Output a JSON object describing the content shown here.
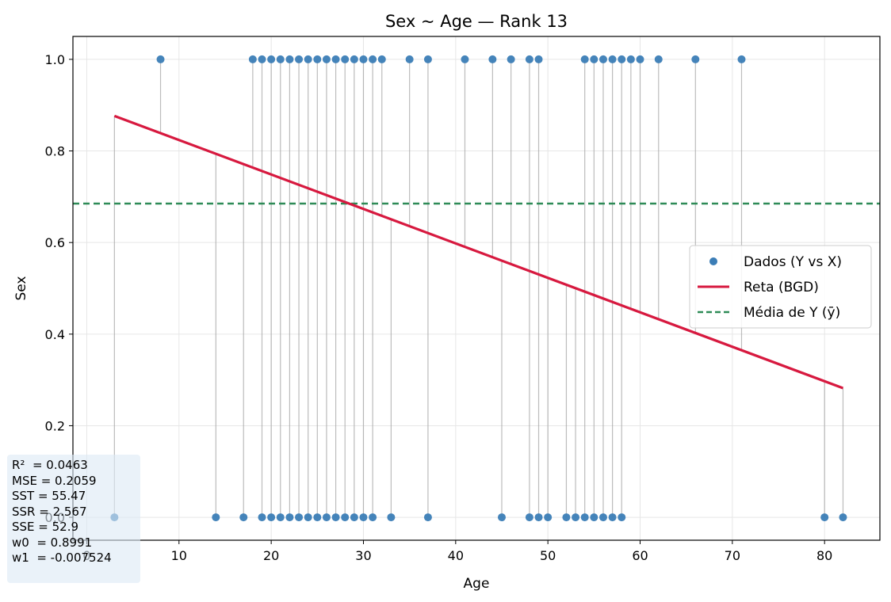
{
  "chart_data": {
    "type": "scatter",
    "title": "Sex ~ Age — Rank 13",
    "xlabel": "Age",
    "ylabel": "Sex",
    "xlim": [
      -1.5,
      86
    ],
    "ylim": [
      -0.05,
      1.05
    ],
    "x_ticks": [
      0,
      10,
      20,
      30,
      40,
      50,
      60,
      70,
      80
    ],
    "y_ticks": [
      0.0,
      0.2,
      0.4,
      0.6,
      0.8,
      1.0
    ],
    "x_tick_labels": [
      "0",
      "10",
      "20",
      "30",
      "40",
      "50",
      "60",
      "70",
      "80"
    ],
    "y_tick_labels": [
      "0.0",
      "0.2",
      "0.4",
      "0.6",
      "0.8",
      "1.0"
    ],
    "grid": true,
    "legend_position": "right",
    "series": [
      {
        "name": "Dados (Y vs X)",
        "kind": "scatter",
        "color": "#3b7db6",
        "points_y1_x": [
          8,
          18,
          19,
          20,
          21,
          22,
          23,
          24,
          25,
          26,
          27,
          28,
          29,
          30,
          31,
          32,
          35,
          37,
          41,
          44,
          46,
          48,
          49,
          54,
          55,
          56,
          57,
          58,
          59,
          60,
          62,
          66,
          71
        ],
        "points_y0_x": [
          3,
          14,
          17,
          19,
          20,
          21,
          22,
          23,
          24,
          25,
          26,
          27,
          28,
          29,
          30,
          31,
          33,
          37,
          45,
          48,
          49,
          50,
          52,
          53,
          54,
          55,
          56,
          57,
          58,
          80,
          82
        ]
      },
      {
        "name": "Reta (BGD)",
        "kind": "line",
        "color": "#d7193f",
        "x": [
          3,
          82
        ],
        "y": [
          0.8765,
          0.2821
        ]
      },
      {
        "name": "Média de Y (ȳ)",
        "kind": "hline",
        "color": "#2e8b57",
        "y": 0.685
      }
    ],
    "residual_color": "#a6a6a6",
    "stats": {
      "lines": [
        "R²  = 0.0463",
        "MSE = 0.2059",
        "SST = 55.47",
        "SSR = 2.567",
        "SSE = 52.9",
        "w0  = 0.8991",
        "w1  = -0.007524"
      ]
    }
  }
}
